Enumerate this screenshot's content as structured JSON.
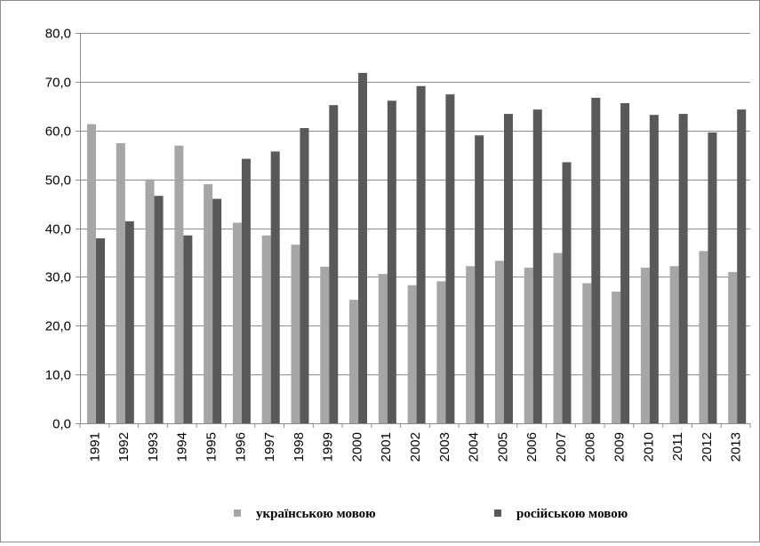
{
  "chart_data": {
    "type": "bar",
    "title": "",
    "xlabel": "",
    "ylabel": "",
    "ylim": [
      0,
      80
    ],
    "y_ticks": [
      0,
      10,
      20,
      30,
      40,
      50,
      60,
      70,
      80
    ],
    "y_tick_labels": [
      "0,0",
      "10,0",
      "20,0",
      "30,0",
      "40,0",
      "50,0",
      "60,0",
      "70,0",
      "80,0"
    ],
    "grid": true,
    "legend_position": "bottom",
    "categories": [
      "1991",
      "1992",
      "1993",
      "1994",
      "1995",
      "1996",
      "1997",
      "1998",
      "1999",
      "2000",
      "2001",
      "2002",
      "2003",
      "2004",
      "2005",
      "2006",
      "2007",
      "2008",
      "2009",
      "2010",
      "2011",
      "2012",
      "2013"
    ],
    "series": [
      {
        "name": "українською мовою",
        "color": "#a6a6a6",
        "values": [
          61.3,
          57.4,
          50.0,
          56.9,
          49.0,
          41.1,
          38.5,
          36.6,
          32.1,
          25.3,
          30.6,
          28.3,
          29.1,
          32.2,
          33.3,
          31.9,
          34.9,
          28.7,
          27.0,
          31.9,
          32.2,
          35.3,
          31.0
        ]
      },
      {
        "name": "російською мовою",
        "color": "#595959",
        "values": [
          37.9,
          41.4,
          46.6,
          38.5,
          46.0,
          54.2,
          55.7,
          60.5,
          65.2,
          71.8,
          66.1,
          69.1,
          67.4,
          59.0,
          63.4,
          64.3,
          53.5,
          66.7,
          65.6,
          63.2,
          63.4,
          59.6,
          64.3
        ]
      }
    ]
  }
}
